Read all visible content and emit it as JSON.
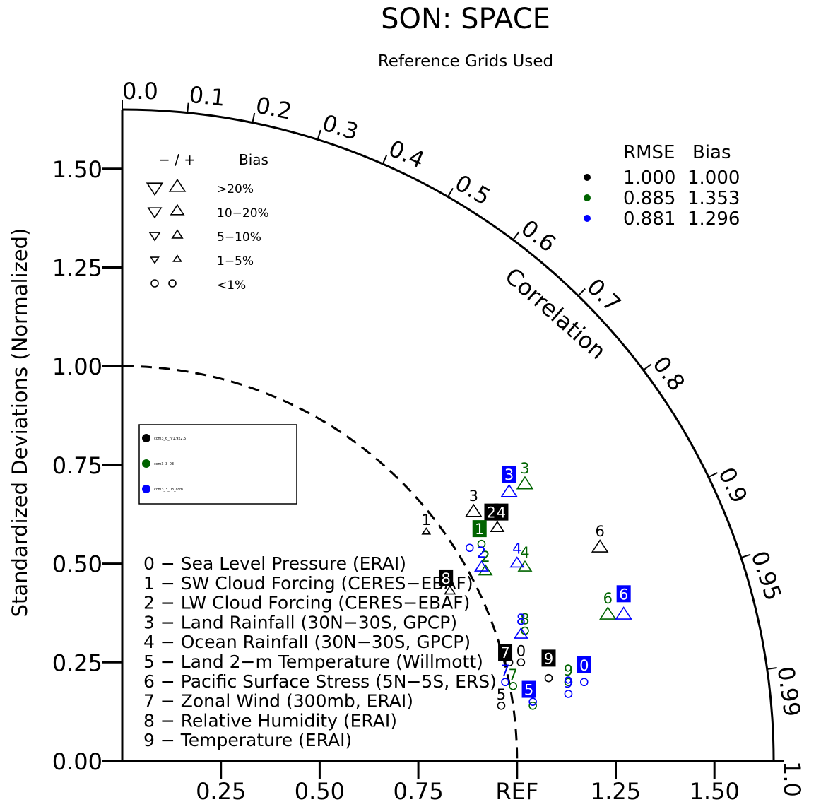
{
  "chart_data": {
    "type": "scatter",
    "subtype": "taylor-diagram",
    "title": "SON: SPACE",
    "subtitle": "Reference Grids Used",
    "ylabel": "Standardized Deviations (Normalized)",
    "arc_label": "Correlation",
    "ref_label": "REF",
    "ylim": [
      0,
      1.65
    ],
    "xlim": [
      0,
      1.65
    ],
    "y_ticks": [
      {
        "v": 0,
        "label": "0.00"
      },
      {
        "v": 0.25,
        "label": "0.25"
      },
      {
        "v": 0.5,
        "label": "0.50"
      },
      {
        "v": 0.75,
        "label": "0.75"
      },
      {
        "v": 1.0,
        "label": "1.00"
      },
      {
        "v": 1.25,
        "label": "1.25"
      },
      {
        "v": 1.5,
        "label": "1.50"
      }
    ],
    "x_ticks": [
      {
        "v": 0.25,
        "label": "0.25"
      },
      {
        "v": 0.5,
        "label": "0.50"
      },
      {
        "v": 0.75,
        "label": "0.75"
      },
      {
        "v": 1.0,
        "label": "REF"
      },
      {
        "v": 1.25,
        "label": "1.25"
      },
      {
        "v": 1.5,
        "label": "1.50"
      }
    ],
    "corr_ticks": [
      {
        "v": 0.0,
        "label": "0.0"
      },
      {
        "v": 0.1,
        "label": "0.1"
      },
      {
        "v": 0.2,
        "label": "0.2"
      },
      {
        "v": 0.3,
        "label": "0.3"
      },
      {
        "v": 0.4,
        "label": "0.4"
      },
      {
        "v": 0.5,
        "label": "0.5"
      },
      {
        "v": 0.6,
        "label": "0.6"
      },
      {
        "v": 0.7,
        "label": "0.7"
      },
      {
        "v": 0.8,
        "label": "0.8"
      },
      {
        "v": 0.9,
        "label": "0.9"
      },
      {
        "v": 0.95,
        "label": "0.95"
      },
      {
        "v": 0.99,
        "label": "0.99"
      },
      {
        "v": 1.0,
        "label": "1.0"
      }
    ],
    "ref_arc": 1.0,
    "bias_legend": {
      "header_sign": "− / +",
      "header_bias": "Bias",
      "rows": [
        {
          "label": ">20%",
          "size": 12,
          "shape": "triangle"
        },
        {
          "label": "10−20%",
          "size": 10,
          "shape": "triangle"
        },
        {
          "label": "5−10%",
          "size": 8,
          "shape": "triangle"
        },
        {
          "label": "1−5%",
          "size": 6,
          "shape": "triangle"
        },
        {
          "label": "<1%",
          "size": 5,
          "shape": "circle"
        }
      ]
    },
    "stats_legend": {
      "header_rmse": "RMSE",
      "header_bias": "Bias",
      "rows": [
        {
          "color": "#000000",
          "rmse": "1.000",
          "bias": "1.000"
        },
        {
          "color": "#006400",
          "rmse": "0.885",
          "bias": "1.353"
        },
        {
          "color": "#0000ff",
          "rmse": "0.881",
          "bias": "1.296"
        }
      ]
    },
    "case_legend": [
      {
        "color": "#000000",
        "name": "ccm3_6_fv1.9x2.5"
      },
      {
        "color": "#006400",
        "name": "ccm3_3_03"
      },
      {
        "color": "#0000ff",
        "name": "ccm3_3_03_ccm"
      }
    ],
    "variables": [
      {
        "id": "0",
        "name": "Sea Level Pressure (ERAI)"
      },
      {
        "id": "1",
        "name": "SW Cloud Forcing (CERES−EBAF)"
      },
      {
        "id": "2",
        "name": "LW Cloud Forcing (CERES−EBAF)"
      },
      {
        "id": "3",
        "name": "Land Rainfall (30N−30S, GPCP)"
      },
      {
        "id": "4",
        "name": "Ocean Rainfall (30N−30S, GPCP)"
      },
      {
        "id": "5",
        "name": "Land 2−m Temperature (Willmott)"
      },
      {
        "id": "6",
        "name": "Pacific Surface Stress (5N−5S, ERS)"
      },
      {
        "id": "7",
        "name": "Zonal Wind (300mb, ERAI)"
      },
      {
        "id": "8",
        "name": "Relative Humidity (ERAI)"
      },
      {
        "id": "9",
        "name": "Temperature (ERAI)"
      }
    ],
    "series": [
      {
        "name": "ccm3_6_fv1.9x2.5",
        "color": "#000000",
        "points": [
          {
            "id": "0",
            "x": 1.01,
            "y": 0.25,
            "marker": "circle",
            "size": 5
          },
          {
            "id": "1",
            "x": 0.77,
            "y": 0.58,
            "marker": "up",
            "size": 6
          },
          {
            "id": "2",
            "x": 0.95,
            "y": 0.59,
            "marker": "up",
            "size": 10
          },
          {
            "id": "3",
            "x": 0.89,
            "y": 0.63,
            "marker": "up",
            "size": 12
          },
          {
            "id": "4",
            "x": 0.94,
            "y": 0.62,
            "marker": "up",
            "size": 10
          },
          {
            "id": "5",
            "x": 0.96,
            "y": 0.14,
            "marker": "circle",
            "size": 5
          },
          {
            "id": "6",
            "x": 1.21,
            "y": 0.54,
            "marker": "up",
            "size": 12
          },
          {
            "id": "7",
            "x": 0.98,
            "y": 0.25,
            "marker": "circle",
            "size": 5
          },
          {
            "id": "8",
            "x": 0.83,
            "y": 0.43,
            "marker": "up",
            "size": 8
          },
          {
            "id": "9",
            "x": 1.08,
            "y": 0.21,
            "marker": "circle",
            "size": 5
          }
        ]
      },
      {
        "name": "ccm3_3_03",
        "color": "#006400",
        "points": [
          {
            "id": "0",
            "x": 1.17,
            "y": 0.24,
            "marker": "circle",
            "size": 5
          },
          {
            "id": "1",
            "x": 0.91,
            "y": 0.55,
            "marker": "circle",
            "size": 5
          },
          {
            "id": "2",
            "x": 0.92,
            "y": 0.48,
            "marker": "up",
            "size": 10
          },
          {
            "id": "3",
            "x": 1.02,
            "y": 0.7,
            "marker": "up",
            "size": 12
          },
          {
            "id": "4",
            "x": 1.02,
            "y": 0.49,
            "marker": "up",
            "size": 10
          },
          {
            "id": "5",
            "x": 1.04,
            "y": 0.14,
            "marker": "circle",
            "size": 5
          },
          {
            "id": "6",
            "x": 1.23,
            "y": 0.37,
            "marker": "up",
            "size": 12
          },
          {
            "id": "7",
            "x": 0.99,
            "y": 0.19,
            "marker": "circle",
            "size": 5
          },
          {
            "id": "8",
            "x": 1.02,
            "y": 0.33,
            "marker": "circle",
            "size": 5
          },
          {
            "id": "9",
            "x": 1.13,
            "y": 0.2,
            "marker": "circle",
            "size": 5
          }
        ]
      },
      {
        "name": "ccm3_3_03_ccm",
        "color": "#0000ff",
        "points": [
          {
            "id": "0",
            "x": 1.17,
            "y": 0.2,
            "marker": "circle",
            "size": 5
          },
          {
            "id": "1",
            "x": 0.88,
            "y": 0.54,
            "marker": "circle",
            "size": 5
          },
          {
            "id": "2",
            "x": 0.91,
            "y": 0.49,
            "marker": "up",
            "size": 10
          },
          {
            "id": "3",
            "x": 0.98,
            "y": 0.68,
            "marker": "up",
            "size": 12
          },
          {
            "id": "4",
            "x": 1.0,
            "y": 0.5,
            "marker": "up",
            "size": 10
          },
          {
            "id": "5",
            "x": 1.04,
            "y": 0.15,
            "marker": "circle",
            "size": 5
          },
          {
            "id": "6",
            "x": 1.27,
            "y": 0.37,
            "marker": "up",
            "size": 12
          },
          {
            "id": "7",
            "x": 0.97,
            "y": 0.2,
            "marker": "circle",
            "size": 5
          },
          {
            "id": "8",
            "x": 1.01,
            "y": 0.32,
            "marker": "up",
            "size": 10
          },
          {
            "id": "9",
            "x": 1.13,
            "y": 0.17,
            "marker": "circle",
            "size": 5
          }
        ]
      }
    ],
    "boxed_labels": [
      {
        "id": "2",
        "x": 0.935,
        "y": 0.627,
        "bg": "#000000",
        "fg": "#ffffff"
      },
      {
        "id": "4",
        "x": 0.96,
        "y": 0.627,
        "bg": "#000000",
        "fg": "#ffffff"
      },
      {
        "id": "3",
        "x": 0.98,
        "y": 0.723,
        "bg": "#0000ff",
        "fg": "#ffffff"
      },
      {
        "id": "1",
        "x": 0.905,
        "y": 0.585,
        "bg": "#006400",
        "fg": "#ffffff"
      },
      {
        "id": "8",
        "x": 0.82,
        "y": 0.46,
        "bg": "#000000",
        "fg": "#ffffff"
      },
      {
        "id": "7",
        "x": 0.97,
        "y": 0.272,
        "bg": "#000000",
        "fg": "#ffffff"
      },
      {
        "id": "9",
        "x": 1.08,
        "y": 0.257,
        "bg": "#000000",
        "fg": "#ffffff"
      },
      {
        "id": "0",
        "x": 1.17,
        "y": 0.24,
        "bg": "#0000ff",
        "fg": "#ffffff"
      },
      {
        "id": "6",
        "x": 1.27,
        "y": 0.42,
        "bg": "#0000ff",
        "fg": "#ffffff"
      },
      {
        "id": "5",
        "x": 1.03,
        "y": 0.178,
        "bg": "#0000ff",
        "fg": "#ffffff"
      }
    ]
  }
}
